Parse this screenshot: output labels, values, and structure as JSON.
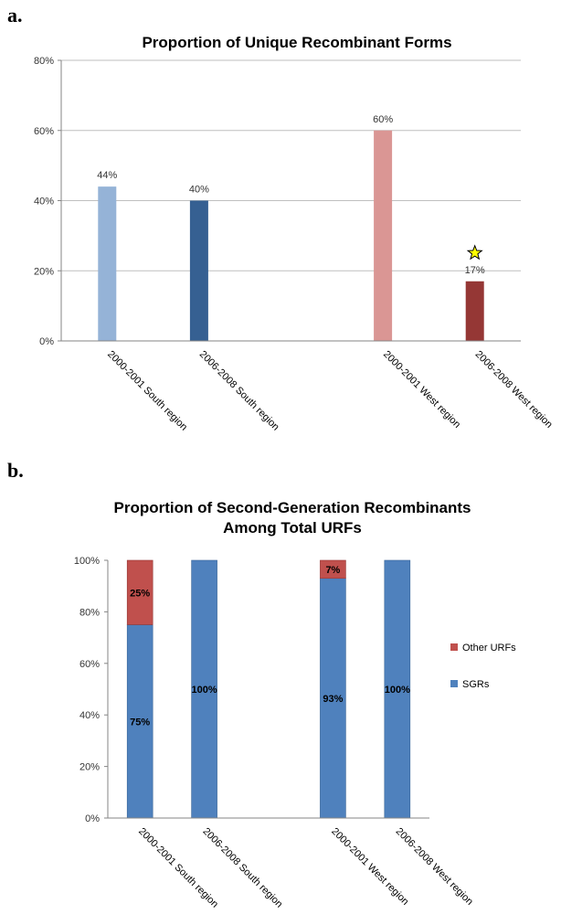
{
  "panel_a_label": "a.",
  "panel_b_label": "b.",
  "colors": {
    "a_bars": [
      "#95b3d7",
      "#366092",
      "#da9694",
      "#953735"
    ],
    "sgr": "#4f81bd",
    "other": "#c0504d",
    "star_fill": "#ffff00",
    "grid": "#bfbfbf",
    "axis": "#868686"
  },
  "chart_data": [
    {
      "type": "bar",
      "title": "Proportion of Unique Recombinant Forms",
      "categories": [
        "2000-2001 South region",
        "2006-2008 South region",
        "",
        "2000-2001 West region",
        "2006-2008 West region"
      ],
      "values": [
        44,
        40,
        null,
        60,
        17
      ],
      "data_labels": [
        "44%",
        "40%",
        "",
        "60%",
        "17%"
      ],
      "ylim": [
        0,
        80
      ],
      "yticks": [
        "0%",
        "20%",
        "40%",
        "60%",
        "80%"
      ],
      "annotation": "star above 2006-2008 West region bar"
    },
    {
      "type": "bar",
      "stacked": true,
      "title_lines": [
        "Proportion of Second-Generation Recombinants",
        "Among Total URFs"
      ],
      "categories": [
        "2000-2001 South region",
        "2006-2008 South region",
        "",
        "2000-2001 West region",
        "2006-2008 West region"
      ],
      "series": [
        {
          "name": "SGRs",
          "values": [
            75,
            100,
            null,
            93,
            100
          ],
          "labels": [
            "75%",
            "100%",
            "",
            "93%",
            "100%"
          ]
        },
        {
          "name": "Other URFs",
          "values": [
            25,
            0,
            null,
            7,
            0
          ],
          "labels": [
            "25%",
            "",
            "",
            "7%",
            ""
          ]
        }
      ],
      "ylim": [
        0,
        100
      ],
      "yticks": [
        "0%",
        "20%",
        "40%",
        "60%",
        "80%",
        "100%"
      ],
      "legend": [
        "Other URFs",
        "SGRs"
      ],
      "legend_position": "right"
    }
  ]
}
